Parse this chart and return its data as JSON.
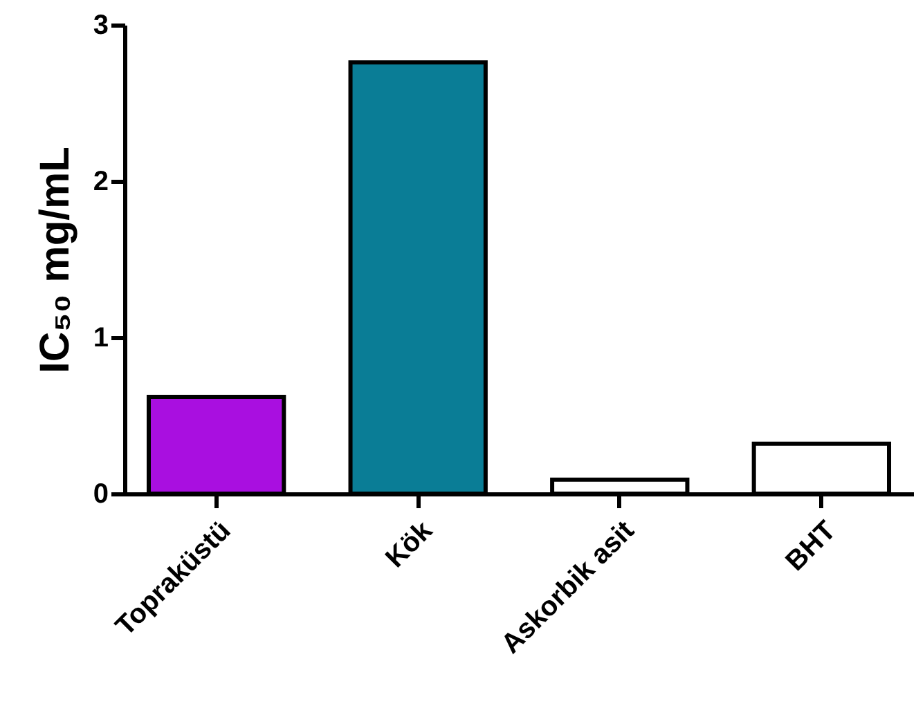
{
  "chart_data": {
    "type": "bar",
    "ylabel": "IC₅₀ mg/mL",
    "categories": [
      "Topraküstü",
      "Kök",
      "Askorbik asit",
      "BHT"
    ],
    "values": [
      0.62,
      2.76,
      0.09,
      0.32
    ],
    "colors": [
      "#a90fe0",
      "#0a7d96",
      "#ffffff",
      "#ffffff"
    ],
    "ylim": [
      0,
      3
    ],
    "yticks": [
      0,
      1,
      2,
      3
    ],
    "grid": false
  }
}
